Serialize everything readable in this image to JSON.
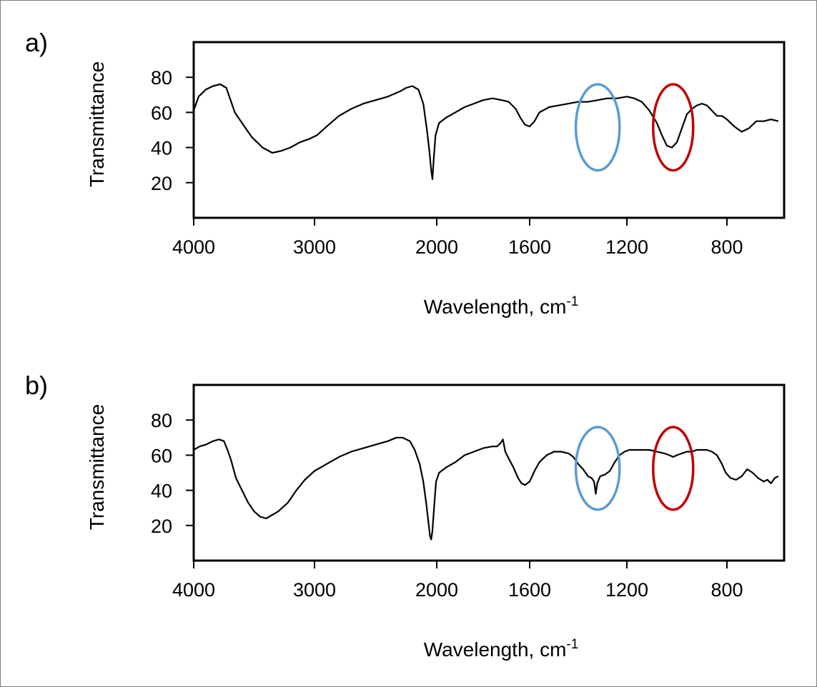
{
  "panel_labels": [
    "a)",
    "b)"
  ],
  "chart_data": [
    {
      "type": "line",
      "panel": "a)",
      "xlabel": "Wavelength, cm-1",
      "ylabel": "Transmittance",
      "x_ticks": [
        4000,
        3000,
        2000,
        1600,
        1200,
        800
      ],
      "y_ticks": [
        20,
        40,
        60,
        80
      ],
      "ylim": [
        0,
        100
      ],
      "x_axis": "segmented: 4000-2000 compressed, 2000-650 expanded, decreasing to the right",
      "grid": false,
      "series": [
        {
          "color": "#000000",
          "points": [
            [
              4000,
              61
            ],
            [
              3960,
              69
            ],
            [
              3900,
              73
            ],
            [
              3840,
              75
            ],
            [
              3780,
              76
            ],
            [
              3730,
              74
            ],
            [
              3700,
              68
            ],
            [
              3660,
              60
            ],
            [
              3600,
              54
            ],
            [
              3520,
              46
            ],
            [
              3430,
              40
            ],
            [
              3350,
              37
            ],
            [
              3280,
              38
            ],
            [
              3200,
              40
            ],
            [
              3120,
              43
            ],
            [
              3040,
              45
            ],
            [
              2980,
              47
            ],
            [
              2900,
              52
            ],
            [
              2800,
              58
            ],
            [
              2700,
              62
            ],
            [
              2600,
              65
            ],
            [
              2500,
              67
            ],
            [
              2400,
              69
            ],
            [
              2300,
              72
            ],
            [
              2250,
              74
            ],
            [
              2200,
              75
            ],
            [
              2150,
              73
            ],
            [
              2110,
              65
            ],
            [
              2080,
              50
            ],
            [
              2060,
              38
            ],
            [
              2045,
              27
            ],
            [
              2035,
              22
            ],
            [
              2025,
              33
            ],
            [
              2010,
              47
            ],
            [
              1990,
              54
            ],
            [
              1960,
              57
            ],
            [
              1920,
              60
            ],
            [
              1880,
              63
            ],
            [
              1840,
              65
            ],
            [
              1800,
              67
            ],
            [
              1760,
              68
            ],
            [
              1720,
              67
            ],
            [
              1690,
              66
            ],
            [
              1660,
              62
            ],
            [
              1640,
              57
            ],
            [
              1620,
              53
            ],
            [
              1600,
              52
            ],
            [
              1580,
              55
            ],
            [
              1560,
              60
            ],
            [
              1520,
              63
            ],
            [
              1480,
              64
            ],
            [
              1440,
              65
            ],
            [
              1400,
              66
            ],
            [
              1360,
              66
            ],
            [
              1320,
              67
            ],
            [
              1280,
              68
            ],
            [
              1240,
              68
            ],
            [
              1200,
              69
            ],
            [
              1170,
              68
            ],
            [
              1140,
              66
            ],
            [
              1110,
              61
            ],
            [
              1080,
              54
            ],
            [
              1060,
              47
            ],
            [
              1040,
              41
            ],
            [
              1020,
              40
            ],
            [
              1000,
              43
            ],
            [
              980,
              51
            ],
            [
              960,
              59
            ],
            [
              940,
              62
            ],
            [
              920,
              64
            ],
            [
              900,
              65
            ],
            [
              880,
              64
            ],
            [
              860,
              61
            ],
            [
              840,
              58
            ],
            [
              820,
              58
            ],
            [
              800,
              56
            ],
            [
              780,
              52
            ],
            [
              760,
              49
            ],
            [
              740,
              51
            ],
            [
              720,
              55
            ],
            [
              700,
              55
            ],
            [
              680,
              56
            ],
            [
              660,
              55
            ]
          ]
        }
      ],
      "annotations": [
        {
          "shape": "ellipse",
          "color": "#5b9bd5",
          "x_center": 1320,
          "y_center": 51,
          "x_span": [
            1410,
            1230
          ],
          "y_span": [
            27,
            76
          ]
        },
        {
          "shape": "ellipse",
          "color": "#c00000",
          "x_center": 1015,
          "y_center": 51,
          "x_span": [
            1095,
            935
          ],
          "y_span": [
            27,
            76
          ]
        }
      ]
    },
    {
      "type": "line",
      "panel": "b)",
      "xlabel": "Wavelength, cm-1",
      "ylabel": "Transmittance",
      "x_ticks": [
        4000,
        3000,
        2000,
        1600,
        1200,
        800
      ],
      "y_ticks": [
        20,
        40,
        60,
        80
      ],
      "ylim": [
        0,
        100
      ],
      "x_axis": "segmented: 4000-2000 compressed, 2000-650 expanded, decreasing to the right",
      "grid": false,
      "series": [
        {
          "color": "#000000",
          "points": [
            [
              4000,
              63
            ],
            [
              3950,
              65
            ],
            [
              3900,
              66
            ],
            [
              3840,
              68
            ],
            [
              3790,
              69
            ],
            [
              3750,
              68
            ],
            [
              3720,
              63
            ],
            [
              3690,
              57
            ],
            [
              3650,
              47
            ],
            [
              3600,
              40
            ],
            [
              3550,
              33
            ],
            [
              3500,
              28
            ],
            [
              3450,
              25
            ],
            [
              3400,
              24
            ],
            [
              3350,
              26
            ],
            [
              3300,
              28
            ],
            [
              3220,
              33
            ],
            [
              3150,
              40
            ],
            [
              3080,
              46
            ],
            [
              3000,
              51
            ],
            [
              2900,
              55
            ],
            [
              2800,
              59
            ],
            [
              2700,
              62
            ],
            [
              2600,
              64
            ],
            [
              2500,
              66
            ],
            [
              2400,
              68
            ],
            [
              2330,
              70
            ],
            [
              2280,
              70
            ],
            [
              2220,
              68
            ],
            [
              2180,
              63
            ],
            [
              2140,
              55
            ],
            [
              2110,
              45
            ],
            [
              2085,
              32
            ],
            [
              2065,
              20
            ],
            [
              2055,
              14
            ],
            [
              2045,
              12
            ],
            [
              2035,
              17
            ],
            [
              2020,
              32
            ],
            [
              2005,
              45
            ],
            [
              1990,
              50
            ],
            [
              1960,
              53
            ],
            [
              1920,
              56
            ],
            [
              1880,
              60
            ],
            [
              1840,
              62
            ],
            [
              1800,
              64
            ],
            [
              1760,
              65
            ],
            [
              1740,
              65
            ],
            [
              1725,
              67
            ],
            [
              1715,
              69
            ],
            [
              1705,
              62
            ],
            [
              1690,
              58
            ],
            [
              1670,
              53
            ],
            [
              1650,
              47
            ],
            [
              1635,
              44
            ],
            [
              1620,
              43
            ],
            [
              1600,
              45
            ],
            [
              1580,
              51
            ],
            [
              1560,
              56
            ],
            [
              1530,
              60
            ],
            [
              1500,
              62
            ],
            [
              1470,
              62
            ],
            [
              1440,
              61
            ],
            [
              1420,
              59
            ],
            [
              1400,
              55
            ],
            [
              1380,
              52
            ],
            [
              1360,
              48
            ],
            [
              1345,
              47
            ],
            [
              1335,
              45
            ],
            [
              1328,
              38
            ],
            [
              1322,
              44
            ],
            [
              1310,
              48
            ],
            [
              1290,
              49
            ],
            [
              1270,
              51
            ],
            [
              1250,
              56
            ],
            [
              1230,
              60
            ],
            [
              1210,
              62
            ],
            [
              1190,
              63
            ],
            [
              1150,
              63
            ],
            [
              1110,
              63
            ],
            [
              1080,
              62
            ],
            [
              1050,
              61
            ],
            [
              1030,
              60
            ],
            [
              1015,
              59
            ],
            [
              1000,
              60
            ],
            [
              980,
              61
            ],
            [
              960,
              62
            ],
            [
              940,
              62
            ],
            [
              920,
              63
            ],
            [
              900,
              63
            ],
            [
              880,
              63
            ],
            [
              860,
              62
            ],
            [
              840,
              60
            ],
            [
              820,
              55
            ],
            [
              805,
              50
            ],
            [
              790,
              47
            ],
            [
              775,
              46
            ],
            [
              760,
              48
            ],
            [
              745,
              52
            ],
            [
              730,
              50
            ],
            [
              715,
              47
            ],
            [
              700,
              45
            ],
            [
              690,
              46
            ],
            [
              680,
              44
            ],
            [
              670,
              47
            ],
            [
              660,
              48
            ]
          ]
        }
      ],
      "annotations": [
        {
          "shape": "ellipse",
          "color": "#5b9bd5",
          "x_center": 1320,
          "y_center": 52,
          "x_span": [
            1410,
            1230
          ],
          "y_span": [
            29,
            76
          ]
        },
        {
          "shape": "ellipse",
          "color": "#c00000",
          "x_center": 1015,
          "y_center": 52,
          "x_span": [
            1095,
            935
          ],
          "y_span": [
            29,
            76
          ]
        }
      ]
    }
  ]
}
